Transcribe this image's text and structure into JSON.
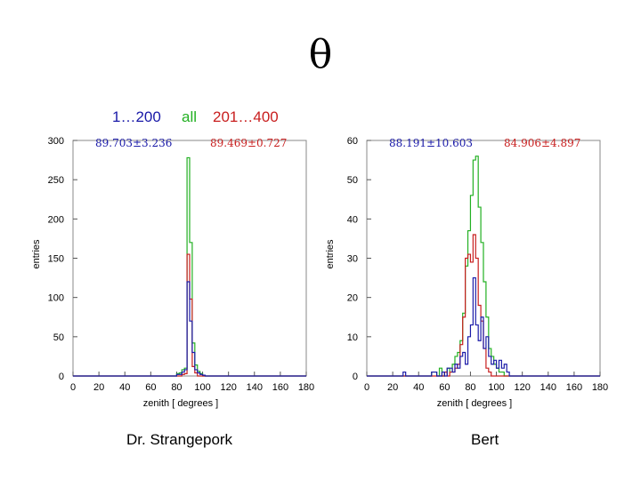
{
  "title": "θ",
  "legend": [
    {
      "label": "1…200",
      "color": "#1a1aa8"
    },
    {
      "label": "all",
      "color": "#22b022"
    },
    {
      "label": "201…400",
      "color": "#c81e1e"
    }
  ],
  "colors": {
    "range1": "#1a1aa8",
    "all": "#22b022",
    "range2": "#c81e1e"
  },
  "chart_data": [
    {
      "type": "histogram",
      "caption": "Dr. Strangepork",
      "xlabel": "zenith [ degrees ]",
      "ylabel": "entries",
      "xlim": [
        0,
        180
      ],
      "ylim": [
        0,
        300
      ],
      "xticks": [
        0,
        20,
        40,
        60,
        80,
        100,
        120,
        140,
        160,
        180
      ],
      "yticks": [
        0,
        50,
        100,
        150,
        200,
        250,
        300
      ],
      "bin_width": 2,
      "stats_left": "89.703±3.236",
      "stats_right": "89.469±0.727",
      "series": [
        {
          "name": "all",
          "color": "#22b022",
          "bins": [
            [
              80,
              3
            ],
            [
              82,
              4
            ],
            [
              84,
              8
            ],
            [
              86,
              10
            ],
            [
              88,
              278
            ],
            [
              90,
              170
            ],
            [
              92,
              42
            ],
            [
              94,
              14
            ],
            [
              96,
              6
            ],
            [
              98,
              3
            ]
          ]
        },
        {
          "name": "201…400",
          "color": "#c81e1e",
          "bins": [
            [
              84,
              2
            ],
            [
              86,
              3
            ],
            [
              88,
              155
            ],
            [
              90,
              98
            ],
            [
              92,
              12
            ],
            [
              94,
              4
            ]
          ]
        },
        {
          "name": "1…200",
          "color": "#1a1aa8",
          "bins": [
            [
              80,
              2
            ],
            [
              82,
              2
            ],
            [
              84,
              5
            ],
            [
              86,
              8
            ],
            [
              88,
              120
            ],
            [
              90,
              70
            ],
            [
              92,
              30
            ],
            [
              94,
              8
            ],
            [
              96,
              4
            ],
            [
              98,
              2
            ],
            [
              100,
              1
            ]
          ]
        }
      ]
    },
    {
      "type": "histogram",
      "caption": "Bert",
      "xlabel": "zenith [ degrees ]",
      "ylabel": "entries",
      "xlim": [
        0,
        180
      ],
      "ylim": [
        0,
        60
      ],
      "xticks": [
        0,
        20,
        40,
        60,
        80,
        100,
        120,
        140,
        160,
        180
      ],
      "yticks": [
        0,
        10,
        20,
        30,
        40,
        50,
        60
      ],
      "bin_width": 2,
      "stats_left": "88.191±10.603",
      "stats_right": "84.906±4.897",
      "series": [
        {
          "name": "all",
          "color": "#22b022",
          "bins": [
            [
              50,
              1
            ],
            [
              52,
              1
            ],
            [
              56,
              2
            ],
            [
              60,
              1
            ],
            [
              62,
              2
            ],
            [
              64,
              1
            ],
            [
              66,
              3
            ],
            [
              68,
              5
            ],
            [
              70,
              6
            ],
            [
              72,
              9
            ],
            [
              74,
              16
            ],
            [
              76,
              28
            ],
            [
              78,
              37
            ],
            [
              80,
              46
            ],
            [
              82,
              55
            ],
            [
              84,
              56
            ],
            [
              86,
              43
            ],
            [
              88,
              34
            ],
            [
              90,
              24
            ],
            [
              92,
              15
            ],
            [
              94,
              7
            ],
            [
              96,
              5
            ],
            [
              98,
              3
            ],
            [
              100,
              2
            ],
            [
              102,
              1
            ],
            [
              104,
              1
            ]
          ]
        },
        {
          "name": "201…400",
          "color": "#c81e1e",
          "bins": [
            [
              60,
              1
            ],
            [
              64,
              1
            ],
            [
              66,
              1
            ],
            [
              68,
              2
            ],
            [
              70,
              3
            ],
            [
              72,
              8
            ],
            [
              74,
              15
            ],
            [
              76,
              30
            ],
            [
              78,
              31
            ],
            [
              80,
              29
            ],
            [
              82,
              36
            ],
            [
              84,
              30
            ],
            [
              86,
              18
            ],
            [
              88,
              14
            ],
            [
              90,
              7
            ],
            [
              92,
              2
            ],
            [
              94,
              1
            ]
          ]
        },
        {
          "name": "1…200",
          "color": "#1a1aa8",
          "bins": [
            [
              28,
              1
            ],
            [
              50,
              1
            ],
            [
              52,
              1
            ],
            [
              58,
              1
            ],
            [
              62,
              2
            ],
            [
              64,
              2
            ],
            [
              66,
              1
            ],
            [
              68,
              3
            ],
            [
              70,
              2
            ],
            [
              72,
              5
            ],
            [
              74,
              6
            ],
            [
              76,
              3
            ],
            [
              78,
              10
            ],
            [
              80,
              13
            ],
            [
              82,
              25
            ],
            [
              84,
              13
            ],
            [
              86,
              9
            ],
            [
              88,
              15
            ],
            [
              90,
              7
            ],
            [
              92,
              10
            ],
            [
              94,
              5
            ],
            [
              96,
              3
            ],
            [
              98,
              4
            ],
            [
              100,
              2
            ],
            [
              102,
              4
            ],
            [
              104,
              2
            ],
            [
              106,
              3
            ],
            [
              108,
              1
            ]
          ]
        }
      ]
    }
  ]
}
